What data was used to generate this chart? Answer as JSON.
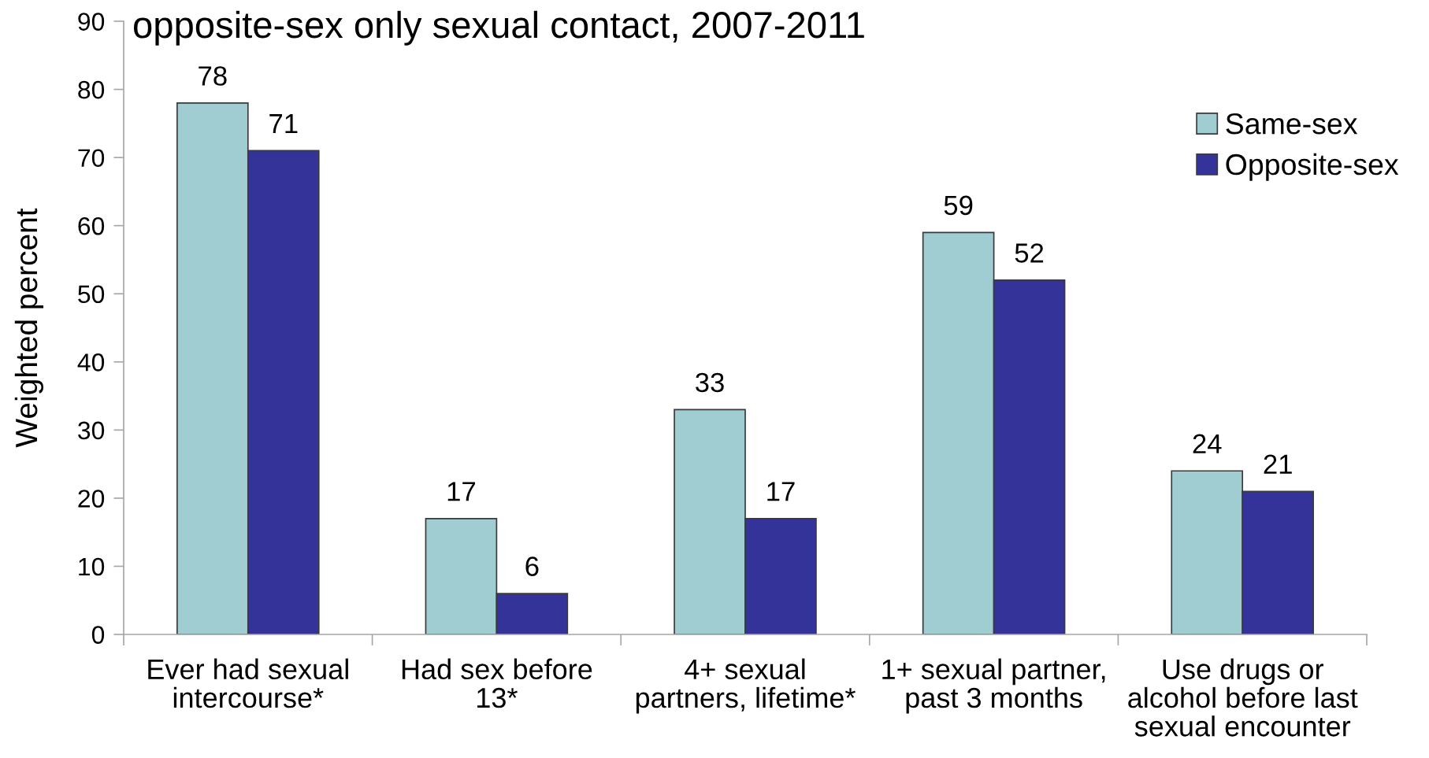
{
  "chart_data": {
    "type": "bar",
    "title": "opposite-sex only sexual contact, 2007-2011",
    "ylabel": "Weighted percent",
    "categories": [
      "Ever had sexual\nintercourse*",
      "Had sex before\n13*",
      "4+ sexual\npartners, lifetime*",
      "1+ sexual partner,\npast 3 months",
      "Use drugs or\nalcohol before last\nsexual encounter"
    ],
    "series": [
      {
        "name": "Same-sex",
        "color": "#a0cdd1",
        "values": [
          78,
          17,
          33,
          59,
          24
        ]
      },
      {
        "name": "Opposite-sex",
        "color": "#333399",
        "values": [
          71,
          6,
          17,
          52,
          21
        ]
      }
    ],
    "ylim": [
      0,
      90
    ],
    "yticks": [
      0,
      10,
      20,
      30,
      40,
      50,
      60,
      70,
      80,
      90
    ],
    "grid": false,
    "legend": "top right",
    "data_labels": true
  }
}
